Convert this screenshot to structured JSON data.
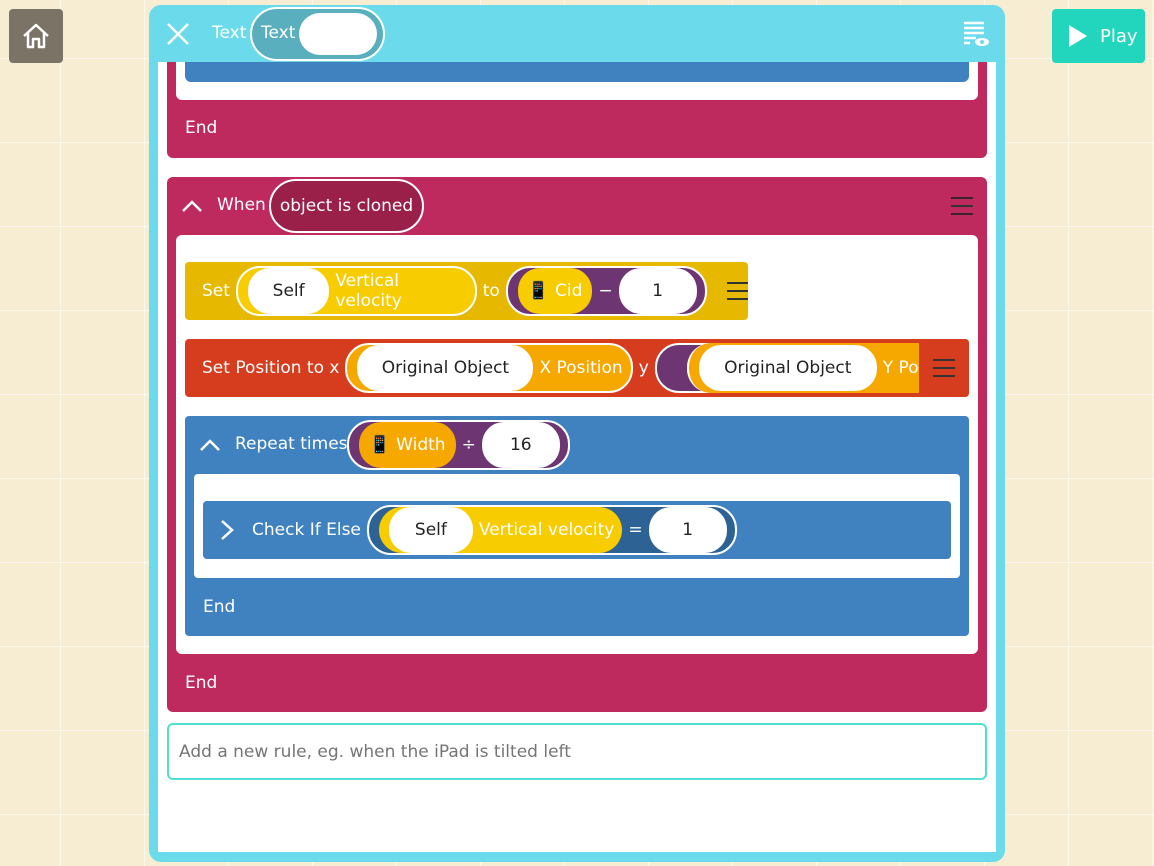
{
  "nav": {
    "home_icon": "home-icon",
    "play_label": "Play",
    "play_icon": "play-icon"
  },
  "header": {
    "label": "Text",
    "toggle_label": "Text",
    "close_icon": "close-icon",
    "view_icon": "list-eye-icon"
  },
  "colors": {
    "panel": "#6bdbec",
    "rule": "#bf2a5e",
    "set": "#e6b800",
    "position": "#d63d1f",
    "repeat": "#3f82bf",
    "play": "#22d6bd"
  },
  "top_block": {
    "end_label": "End"
  },
  "rule": {
    "when_label": "When",
    "event": "object is cloned",
    "end_label": "End",
    "set": {
      "label": "Set",
      "object": "Self",
      "property": "Vertical velocity",
      "to": "to",
      "device_icon": "phone-icon",
      "var": "Cid",
      "op": "−",
      "value": "1"
    },
    "set_position": {
      "label": "Set Position to x",
      "x_object": "Original Object",
      "x_property": "X Position",
      "y_label": "y",
      "y_object": "Original Object",
      "y_property": "Y Posi"
    },
    "repeat": {
      "label": "Repeat times",
      "device_icon": "phone-icon",
      "var": "Width",
      "op": "÷",
      "value": "16",
      "end_label": "End",
      "check": {
        "label": "Check If Else",
        "object": "Self",
        "property": "Vertical velocity",
        "op": "=",
        "value": "1"
      }
    }
  },
  "new_rule": {
    "placeholder": "Add a new rule, eg. when the iPad is tilted left"
  }
}
